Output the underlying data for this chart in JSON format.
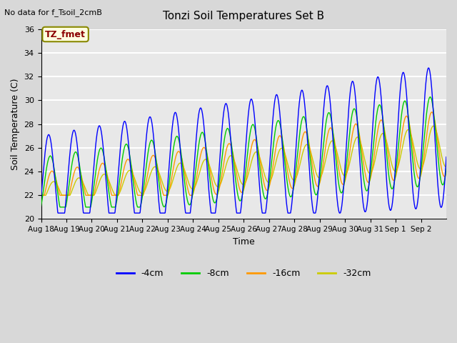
{
  "title": "Tonzi Soil Temperatures Set B",
  "xlabel": "Time",
  "ylabel": "Soil Temperature (C)",
  "no_data_text": "No data for f_Tsoil_2cmB",
  "tz_fmet_label": "TZ_fmet",
  "ylim": [
    20,
    36
  ],
  "yticks": [
    20,
    22,
    24,
    26,
    28,
    30,
    32,
    34,
    36
  ],
  "x_labels": [
    "Aug 18",
    "Aug 19",
    "Aug 20",
    "Aug 21",
    "Aug 22",
    "Aug 23",
    "Aug 24",
    "Aug 25",
    "Aug 26",
    "Aug 27",
    "Aug 28",
    "Aug 29",
    "Aug 30",
    "Aug 31",
    "Sep 1",
    "Sep 2"
  ],
  "series_colors": {
    "-4cm": "#0000ff",
    "-8cm": "#00cc00",
    "-16cm": "#ff9900",
    "-32cm": "#cccc00"
  },
  "legend_labels": [
    "-4cm",
    "-8cm",
    "-16cm",
    "-32cm"
  ],
  "bg_color": "#d8d8d8",
  "plot_bg_color": "#e8e8e8",
  "grid_color": "#ffffff"
}
